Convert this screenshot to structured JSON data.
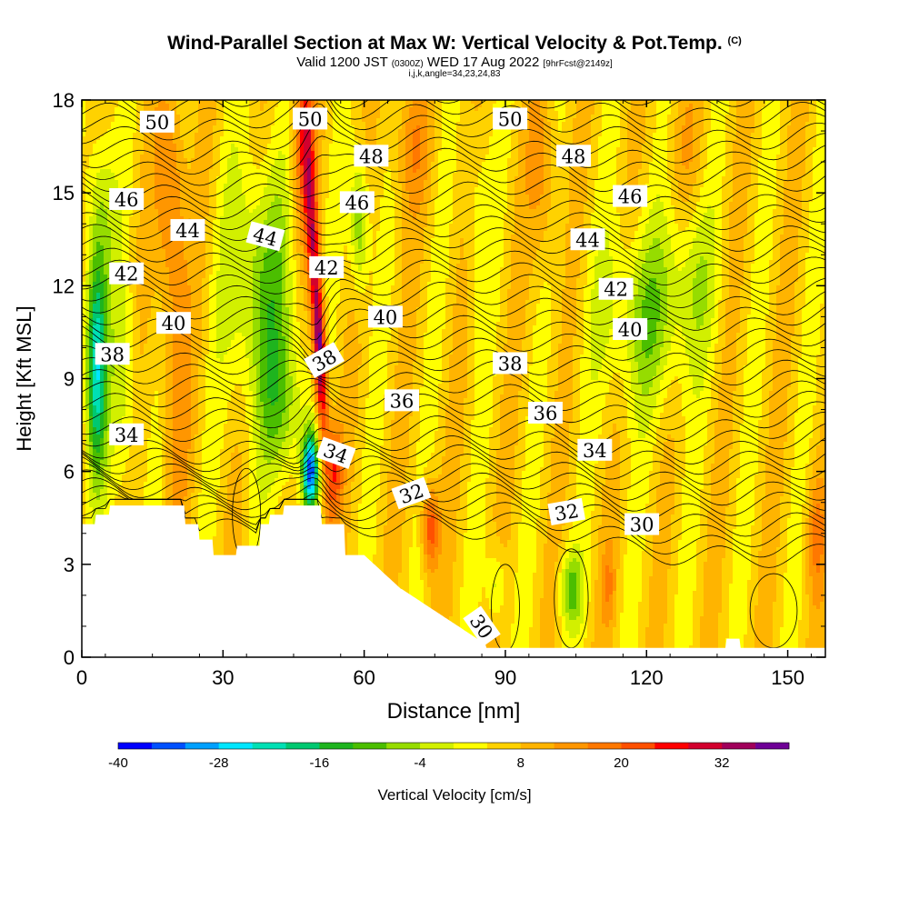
{
  "chart_data": {
    "type": "heatmap",
    "title": "Wind-Parallel Section at Max W: Vertical Velocity & Pot.Temp.",
    "title_mark": "(C)",
    "subtitle_prefix": "Valid 1200 JST",
    "subtitle_utc": "(0300Z)",
    "subtitle_date": "WED 17 Aug 2022",
    "subtitle_fcst": "[9hrFcst@2149z]",
    "subtitle2": "i,j,k,angle=34,23,24,83",
    "xlabel": "Distance [nm]",
    "ylabel": "Height [Kft MSL]",
    "xlim": [
      0,
      158
    ],
    "ylim": [
      0,
      18
    ],
    "x_ticks": [
      "0",
      "30",
      "60",
      "90",
      "120",
      "150"
    ],
    "x_tick_values": [
      0,
      30,
      60,
      90,
      120,
      150
    ],
    "y_ticks": [
      "0",
      "3",
      "6",
      "9",
      "12",
      "15",
      "18"
    ],
    "y_tick_values": [
      0,
      3,
      6,
      9,
      12,
      15,
      18
    ],
    "colorbar": {
      "label": "Vertical Velocity [cm/s]",
      "range": [
        -40,
        40
      ],
      "tick_labels": [
        "-40",
        "-28",
        "-16",
        "-4",
        "8",
        "20",
        "32"
      ],
      "tick_values": [
        -40,
        -28,
        -16,
        -4,
        8,
        20,
        32
      ],
      "colors": [
        "#0000ff",
        "#0050ff",
        "#00a0ff",
        "#00e6ff",
        "#00e0b4",
        "#00c870",
        "#1eb41e",
        "#4bbe00",
        "#96dc00",
        "#d2f000",
        "#ffff00",
        "#ffd200",
        "#ffb400",
        "#ff9600",
        "#ff7800",
        "#ff5000",
        "#ff0000",
        "#d2002d",
        "#a0005a",
        "#6e0096"
      ]
    },
    "theta_contours": {
      "units": "C",
      "labels": [
        {
          "value": "50",
          "x": 16,
          "y": 17.3,
          "angle": 0
        },
        {
          "value": "50",
          "x": 48.5,
          "y": 17.4,
          "angle": 0
        },
        {
          "value": "50",
          "x": 91,
          "y": 17.4,
          "angle": 0
        },
        {
          "value": "48",
          "x": 61.5,
          "y": 16.2,
          "angle": 0
        },
        {
          "value": "48",
          "x": 104.5,
          "y": 16.2,
          "angle": 0
        },
        {
          "value": "46",
          "x": 9.5,
          "y": 14.8,
          "angle": 0
        },
        {
          "value": "46",
          "x": 58.5,
          "y": 14.7,
          "angle": 0
        },
        {
          "value": "46",
          "x": 116.5,
          "y": 14.9,
          "angle": 0
        },
        {
          "value": "44",
          "x": 22.5,
          "y": 13.8,
          "angle": 0
        },
        {
          "value": "44",
          "x": 39,
          "y": 13.6,
          "angle": 15
        },
        {
          "value": "44",
          "x": 107.5,
          "y": 13.5,
          "angle": 0
        },
        {
          "value": "42",
          "x": 9.5,
          "y": 12.4,
          "angle": 0
        },
        {
          "value": "42",
          "x": 52,
          "y": 12.6,
          "angle": 0
        },
        {
          "value": "42",
          "x": 113.5,
          "y": 11.9,
          "angle": 0
        },
        {
          "value": "40",
          "x": 19.5,
          "y": 10.8,
          "angle": 0
        },
        {
          "value": "40",
          "x": 64.5,
          "y": 11.0,
          "angle": 0
        },
        {
          "value": "40",
          "x": 116.5,
          "y": 10.6,
          "angle": 0
        },
        {
          "value": "38",
          "x": 6.5,
          "y": 9.8,
          "angle": 0
        },
        {
          "value": "38",
          "x": 51.5,
          "y": 9.6,
          "angle": -30
        },
        {
          "value": "38",
          "x": 91,
          "y": 9.5,
          "angle": 0
        },
        {
          "value": "36",
          "x": 68,
          "y": 8.3,
          "angle": 0
        },
        {
          "value": "36",
          "x": 98.5,
          "y": 7.9,
          "angle": 0
        },
        {
          "value": "34",
          "x": 9.5,
          "y": 7.2,
          "angle": 0
        },
        {
          "value": "34",
          "x": 54,
          "y": 6.6,
          "angle": 20
        },
        {
          "value": "34",
          "x": 109,
          "y": 6.7,
          "angle": 0
        },
        {
          "value": "32",
          "x": 70,
          "y": 5.3,
          "angle": -20
        },
        {
          "value": "32",
          "x": 103,
          "y": 4.7,
          "angle": -10
        },
        {
          "value": "30",
          "x": 119,
          "y": 4.3,
          "angle": 0
        },
        {
          "value": "30",
          "x": 85,
          "y": 1.0,
          "angle": 55
        }
      ]
    }
  }
}
